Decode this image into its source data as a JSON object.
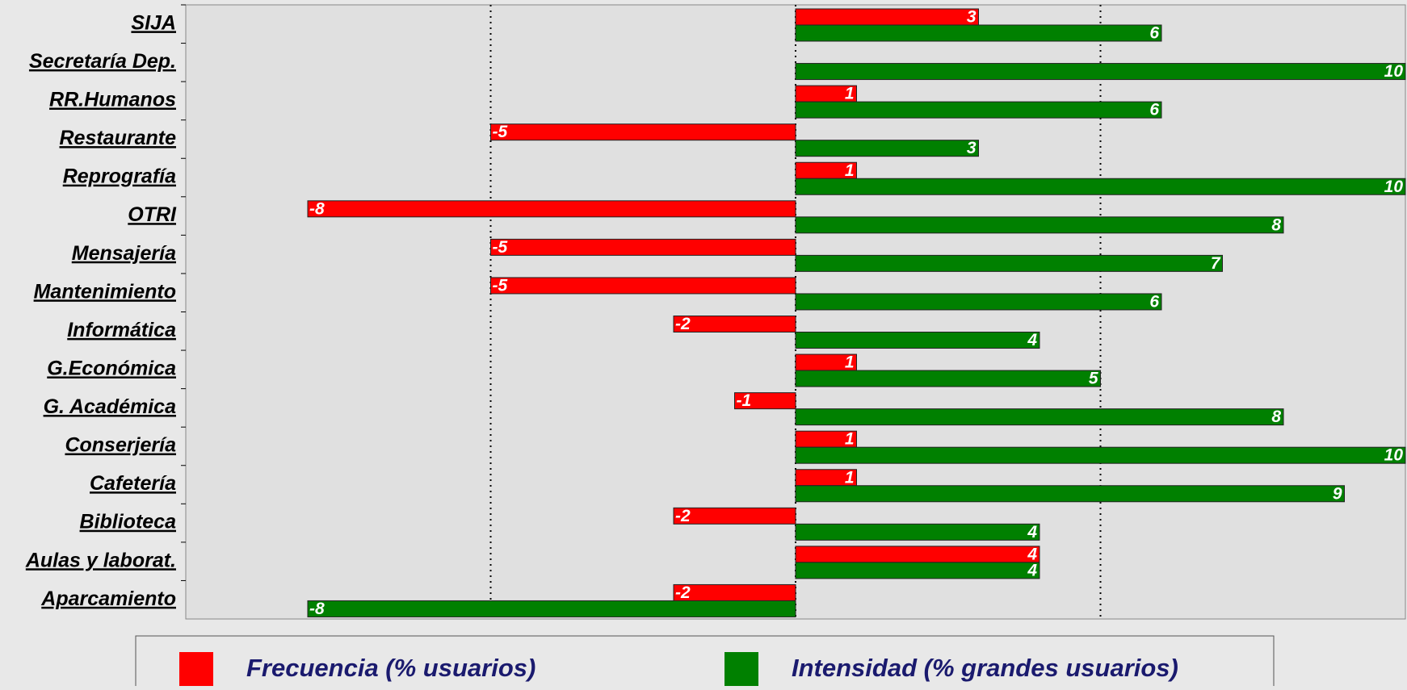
{
  "chart_data": {
    "type": "hbar",
    "categories": [
      "SIJA",
      "Secretaría Dep.",
      "RR.Humanos",
      "Restaurante",
      "Reprografía",
      "OTRI",
      "Mensajería",
      "Mantenimiento",
      "Informática",
      "G.Económica",
      "G. Académica",
      "Conserjería",
      "Cafetería",
      "Biblioteca",
      "Aulas y laborat.",
      "Aparcamiento"
    ],
    "series": [
      {
        "name": "Frecuencia (% usuarios)",
        "color": "#ff0000",
        "values": [
          3,
          null,
          1,
          -5,
          1,
          -8,
          -5,
          -5,
          -2,
          1,
          -1,
          1,
          1,
          -2,
          4,
          -2
        ]
      },
      {
        "name": "Intensidad (% grandes usuarios)",
        "color": "#008000",
        "values": [
          6,
          10,
          6,
          3,
          10,
          8,
          7,
          6,
          4,
          5,
          8,
          10,
          9,
          4,
          4,
          -8
        ]
      }
    ],
    "xlim": [
      -10,
      10
    ],
    "xticks": [
      -5,
      0,
      5
    ],
    "grid": true,
    "legend": "bottom"
  }
}
